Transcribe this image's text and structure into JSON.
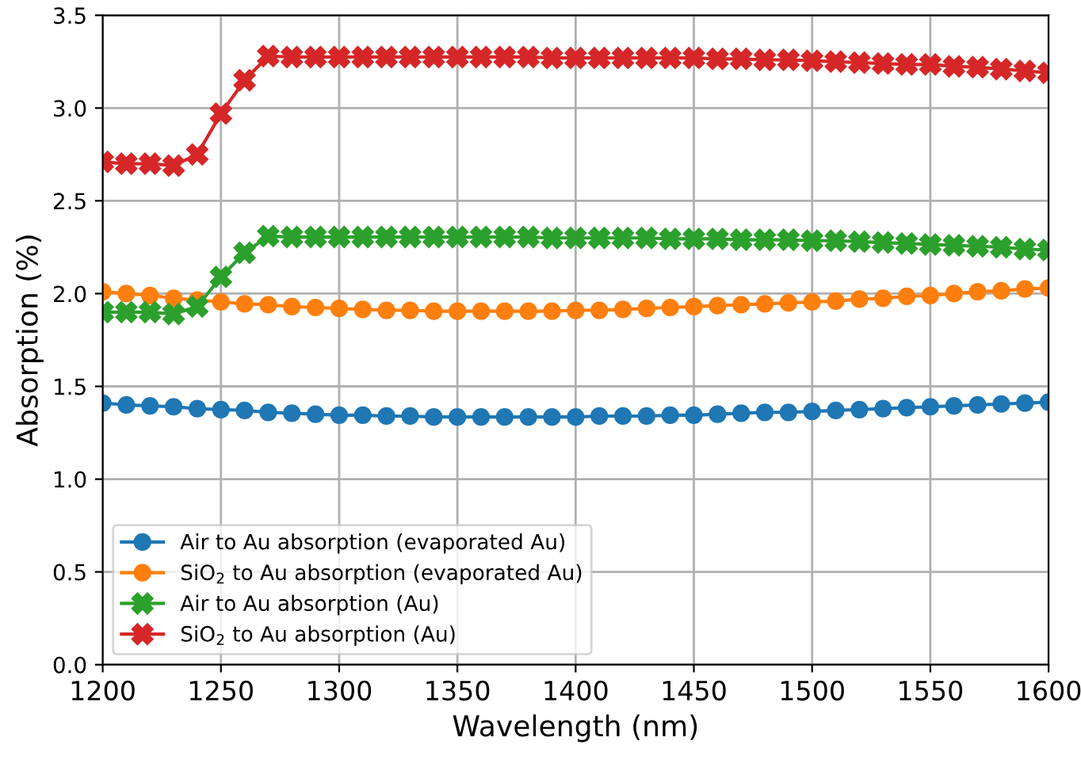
{
  "chart_data": {
    "type": "line",
    "xlabel": "Wavelength (nm)",
    "ylabel": "Absorption (%)",
    "x": [
      1200,
      1210,
      1220,
      1230,
      1240,
      1250,
      1260,
      1270,
      1280,
      1290,
      1300,
      1310,
      1320,
      1330,
      1340,
      1350,
      1360,
      1370,
      1380,
      1390,
      1400,
      1410,
      1420,
      1430,
      1440,
      1450,
      1460,
      1470,
      1480,
      1490,
      1500,
      1510,
      1520,
      1530,
      1540,
      1550,
      1560,
      1570,
      1580,
      1590,
      1600
    ],
    "series": [
      {
        "name": "Air to Au absorption (evaporated Au)",
        "color": "#1f77b4",
        "marker": "circle",
        "values": [
          1.41,
          1.4,
          1.395,
          1.39,
          1.38,
          1.375,
          1.37,
          1.36,
          1.355,
          1.35,
          1.345,
          1.345,
          1.34,
          1.34,
          1.335,
          1.335,
          1.335,
          1.335,
          1.335,
          1.335,
          1.335,
          1.34,
          1.34,
          1.34,
          1.345,
          1.345,
          1.35,
          1.355,
          1.36,
          1.36,
          1.365,
          1.37,
          1.375,
          1.38,
          1.385,
          1.39,
          1.395,
          1.4,
          1.405,
          1.41,
          1.415
        ]
      },
      {
        "name": "SiO$_{2}$ to Au absorption (evaporated Au)",
        "color": "#ff7f0e",
        "marker": "circle",
        "values": [
          2.01,
          2.0,
          1.99,
          1.975,
          1.965,
          1.955,
          1.945,
          1.94,
          1.93,
          1.925,
          1.92,
          1.915,
          1.91,
          1.91,
          1.905,
          1.905,
          1.905,
          1.905,
          1.905,
          1.905,
          1.91,
          1.91,
          1.915,
          1.92,
          1.925,
          1.93,
          1.935,
          1.94,
          1.945,
          1.95,
          1.955,
          1.96,
          1.97,
          1.975,
          1.985,
          1.99,
          2.0,
          2.01,
          2.015,
          2.025,
          2.03
        ]
      },
      {
        "name": "Air to Au absorption (Au)",
        "color": "#2ca02c",
        "marker": "cross",
        "values": [
          1.9,
          1.9,
          1.9,
          1.89,
          1.93,
          2.09,
          2.22,
          2.31,
          2.305,
          2.305,
          2.305,
          2.305,
          2.305,
          2.305,
          2.305,
          2.305,
          2.305,
          2.305,
          2.305,
          2.3,
          2.3,
          2.3,
          2.3,
          2.3,
          2.295,
          2.295,
          2.295,
          2.29,
          2.29,
          2.29,
          2.285,
          2.285,
          2.28,
          2.275,
          2.27,
          2.265,
          2.26,
          2.255,
          2.25,
          2.24,
          2.235
        ]
      },
      {
        "name": "SiO$_{2}$ to Au absorption (Au)",
        "color": "#d62728",
        "marker": "cross",
        "values": [
          2.71,
          2.7,
          2.7,
          2.69,
          2.75,
          2.97,
          3.15,
          3.28,
          3.275,
          3.275,
          3.275,
          3.275,
          3.275,
          3.275,
          3.275,
          3.275,
          3.275,
          3.275,
          3.275,
          3.27,
          3.27,
          3.27,
          3.27,
          3.27,
          3.27,
          3.27,
          3.265,
          3.265,
          3.26,
          3.26,
          3.255,
          3.25,
          3.245,
          3.24,
          3.235,
          3.235,
          3.225,
          3.22,
          3.21,
          3.2,
          3.19
        ]
      }
    ],
    "xlim": [
      1200,
      1600
    ],
    "xticks": [
      1200,
      1250,
      1300,
      1350,
      1400,
      1450,
      1500,
      1550,
      1600
    ],
    "ylim": [
      0,
      3.5
    ],
    "yticks": [
      {
        "value": 0,
        "label": "0.0"
      },
      0.5,
      {
        "value": 1,
        "label": "1.0"
      },
      1.5,
      {
        "value": 2,
        "label": "2.0"
      },
      2.5,
      {
        "value": 3,
        "label": "3.0"
      },
      3.5
    ],
    "grid": true,
    "legend": "bottom left",
    "line_style": "solid"
  }
}
